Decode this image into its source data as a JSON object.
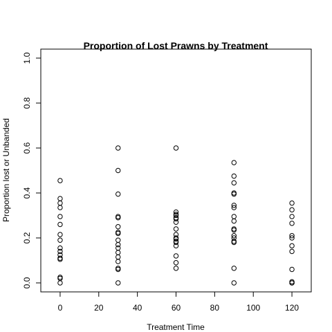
{
  "chart_data": {
    "type": "scatter",
    "title": "Proportion of Lost Prawns by Treatment",
    "xlabel": "Treatment Time",
    "ylabel": "Proportion lost or Unbanded",
    "xlim": [
      -10,
      130
    ],
    "ylim": [
      -0.04,
      1.04
    ],
    "x_ticks": [
      0,
      20,
      40,
      60,
      80,
      100,
      120
    ],
    "x_tick_labels": [
      "0",
      "20",
      "40",
      "60",
      "80",
      "100",
      "120"
    ],
    "y_ticks": [
      0.0,
      0.2,
      0.4,
      0.6,
      0.8,
      1.0
    ],
    "y_tick_labels": [
      "0.0",
      "0.2",
      "0.4",
      "0.6",
      "0.8",
      "1.0"
    ],
    "grid": false,
    "series": [
      {
        "points": [
          {
            "x": 0,
            "y": 0.455
          },
          {
            "x": 0,
            "y": 0.375
          },
          {
            "x": 0,
            "y": 0.355
          },
          {
            "x": 0,
            "y": 0.335
          },
          {
            "x": 0,
            "y": 0.295
          },
          {
            "x": 0,
            "y": 0.26
          },
          {
            "x": 0,
            "y": 0.215
          },
          {
            "x": 0,
            "y": 0.19
          },
          {
            "x": 0,
            "y": 0.155
          },
          {
            "x": 0,
            "y": 0.14
          },
          {
            "x": 0,
            "y": 0.125
          },
          {
            "x": 0,
            "y": 0.11
          },
          {
            "x": 0,
            "y": 0.105
          },
          {
            "x": 0,
            "y": 0.025
          },
          {
            "x": 0,
            "y": 0.02
          },
          {
            "x": 0,
            "y": 0.0
          },
          {
            "x": 30,
            "y": 0.6
          },
          {
            "x": 30,
            "y": 0.5
          },
          {
            "x": 30,
            "y": 0.395
          },
          {
            "x": 30,
            "y": 0.295
          },
          {
            "x": 30,
            "y": 0.29
          },
          {
            "x": 30,
            "y": 0.25
          },
          {
            "x": 30,
            "y": 0.225
          },
          {
            "x": 30,
            "y": 0.22
          },
          {
            "x": 30,
            "y": 0.19
          },
          {
            "x": 30,
            "y": 0.17
          },
          {
            "x": 30,
            "y": 0.155
          },
          {
            "x": 30,
            "y": 0.135
          },
          {
            "x": 30,
            "y": 0.115
          },
          {
            "x": 30,
            "y": 0.095
          },
          {
            "x": 30,
            "y": 0.065
          },
          {
            "x": 30,
            "y": 0.06
          },
          {
            "x": 30,
            "y": 0.0
          },
          {
            "x": 60,
            "y": 0.6
          },
          {
            "x": 60,
            "y": 0.315
          },
          {
            "x": 60,
            "y": 0.305
          },
          {
            "x": 60,
            "y": 0.3
          },
          {
            "x": 60,
            "y": 0.29
          },
          {
            "x": 60,
            "y": 0.285
          },
          {
            "x": 60,
            "y": 0.27
          },
          {
            "x": 60,
            "y": 0.24
          },
          {
            "x": 60,
            "y": 0.215
          },
          {
            "x": 60,
            "y": 0.2
          },
          {
            "x": 60,
            "y": 0.195
          },
          {
            "x": 60,
            "y": 0.185
          },
          {
            "x": 60,
            "y": 0.18
          },
          {
            "x": 60,
            "y": 0.165
          },
          {
            "x": 60,
            "y": 0.12
          },
          {
            "x": 60,
            "y": 0.09
          },
          {
            "x": 60,
            "y": 0.065
          },
          {
            "x": 90,
            "y": 0.535
          },
          {
            "x": 90,
            "y": 0.475
          },
          {
            "x": 90,
            "y": 0.445
          },
          {
            "x": 90,
            "y": 0.4
          },
          {
            "x": 90,
            "y": 0.395
          },
          {
            "x": 90,
            "y": 0.345
          },
          {
            "x": 90,
            "y": 0.335
          },
          {
            "x": 90,
            "y": 0.295
          },
          {
            "x": 90,
            "y": 0.275
          },
          {
            "x": 90,
            "y": 0.24
          },
          {
            "x": 90,
            "y": 0.235
          },
          {
            "x": 90,
            "y": 0.21
          },
          {
            "x": 90,
            "y": 0.2
          },
          {
            "x": 90,
            "y": 0.185
          },
          {
            "x": 90,
            "y": 0.18
          },
          {
            "x": 90,
            "y": 0.065
          },
          {
            "x": 90,
            "y": 0.0
          },
          {
            "x": 120,
            "y": 0.355
          },
          {
            "x": 120,
            "y": 0.325
          },
          {
            "x": 120,
            "y": 0.295
          },
          {
            "x": 120,
            "y": 0.265
          },
          {
            "x": 120,
            "y": 0.21
          },
          {
            "x": 120,
            "y": 0.2
          },
          {
            "x": 120,
            "y": 0.165
          },
          {
            "x": 120,
            "y": 0.14
          },
          {
            "x": 120,
            "y": 0.06
          },
          {
            "x": 120,
            "y": 0.005
          },
          {
            "x": 120,
            "y": 0.0
          },
          {
            "x": 120,
            "y": 0.0
          }
        ]
      }
    ]
  }
}
